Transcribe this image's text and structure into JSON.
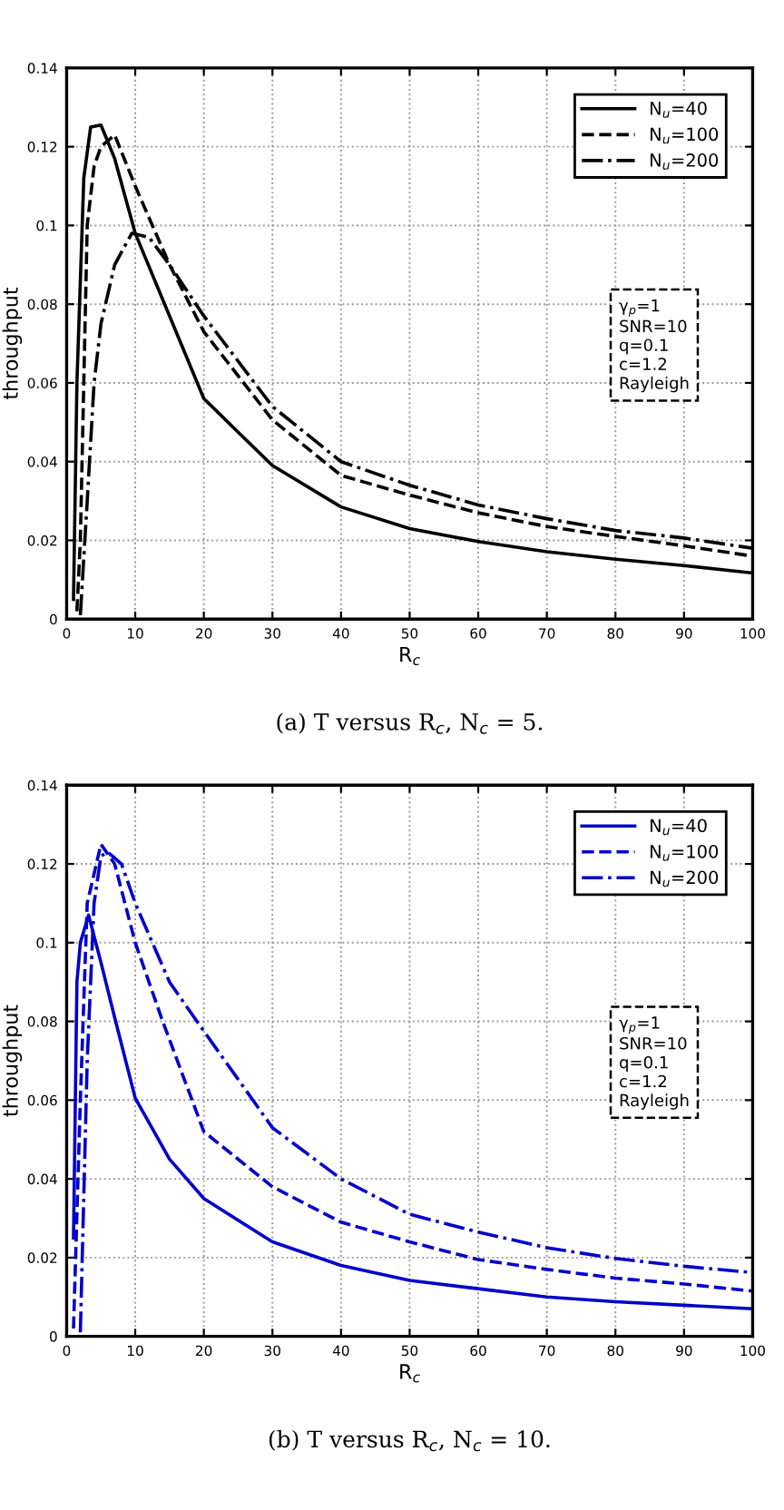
{
  "chart_data": [
    {
      "type": "line",
      "xlabel": "R$_{c}$",
      "ylabel": "throughput",
      "xlim": [
        0,
        100
      ],
      "ylim": [
        0,
        0.14
      ],
      "xticks": [
        0,
        10,
        20,
        30,
        40,
        50,
        60,
        70,
        80,
        90,
        100
      ],
      "yticks": [
        0,
        0.02,
        0.04,
        0.06,
        0.08,
        0.1,
        0.12,
        0.14
      ],
      "grid": true,
      "legend": "top right",
      "annotations": [
        "γ$_{p}$=1\nSNR=10\nq=0.1\nc=1.2\nRayleigh",
        "(a) T versus R$_{c}$, N$_{c}$ = 5."
      ],
      "series": [
        {
          "name": "N$_{u}$=40",
          "color": "#000000",
          "line_style": "solid",
          "x": [
            1,
            1.5,
            2.5,
            3.5,
            5,
            7,
            10,
            15,
            20,
            30,
            40,
            50,
            60,
            70,
            80,
            90,
            100
          ],
          "values": [
            0.005,
            0.06,
            0.112,
            0.125,
            0.1255,
            0.117,
            0.098,
            0.077,
            0.056,
            0.039,
            0.0285,
            0.023,
            0.0197,
            0.0171,
            0.0152,
            0.0136,
            0.0117
          ]
        },
        {
          "name": "N$_{u}$=100",
          "color": "#000000",
          "line_style": "dashed",
          "x": [
            1.5,
            2,
            2.5,
            3,
            4,
            5,
            7,
            10,
            15,
            20,
            30,
            40,
            50,
            60,
            70,
            80,
            90,
            100
          ],
          "values": [
            0.002,
            0.02,
            0.06,
            0.1,
            0.115,
            0.12,
            0.123,
            0.11,
            0.09,
            0.073,
            0.0506,
            0.0365,
            0.0315,
            0.027,
            0.0235,
            0.021,
            0.0186,
            0.016
          ]
        },
        {
          "name": "N$_{u}$=200",
          "color": "#000000",
          "line_style": "dashdot",
          "x": [
            2,
            3,
            4,
            5,
            7,
            9.5,
            12,
            15,
            20,
            30,
            40,
            50,
            60,
            70,
            80,
            90,
            100
          ],
          "values": [
            0.001,
            0.03,
            0.06,
            0.075,
            0.09,
            0.098,
            0.097,
            0.09,
            0.077,
            0.054,
            0.04,
            0.034,
            0.029,
            0.0255,
            0.0225,
            0.0206,
            0.018
          ]
        }
      ]
    },
    {
      "type": "line",
      "xlabel": "R$_{c}$",
      "ylabel": "throughput",
      "xlim": [
        0,
        100
      ],
      "ylim": [
        0,
        0.14
      ],
      "xticks": [
        0,
        10,
        20,
        30,
        40,
        50,
        60,
        70,
        80,
        90,
        100
      ],
      "yticks": [
        0,
        0.02,
        0.04,
        0.06,
        0.08,
        0.1,
        0.12,
        0.14
      ],
      "grid": true,
      "legend": "top right",
      "annotations": [
        "γ$_{p}$=1\nSNR=10\nq=0.1\nc=1.2\nRayleigh",
        "(b) T versus R$_{c}$, N$_{c}$ = 10."
      ],
      "series": [
        {
          "name": "N$_{u}$=40",
          "color": "#0000cc",
          "line_style": "solid",
          "x": [
            1,
            1.5,
            2,
            3.2,
            5,
            7,
            10,
            15,
            20,
            30,
            40,
            50,
            60,
            70,
            80,
            90,
            100
          ],
          "values": [
            0.025,
            0.09,
            0.1,
            0.107,
            0.095,
            0.081,
            0.0605,
            0.045,
            0.035,
            0.024,
            0.018,
            0.0142,
            0.0121,
            0.01,
            0.0088,
            0.0079,
            0.007
          ]
        },
        {
          "name": "N$_{u}$=100",
          "color": "#0000cc",
          "line_style": "dashed",
          "x": [
            1,
            2,
            3,
            5,
            7,
            10,
            14,
            20,
            30,
            40,
            50,
            60,
            70,
            80,
            90,
            100
          ],
          "values": [
            0.002,
            0.06,
            0.11,
            0.125,
            0.12,
            0.1,
            0.08,
            0.052,
            0.038,
            0.029,
            0.024,
            0.0195,
            0.017,
            0.0148,
            0.0133,
            0.0115
          ]
        },
        {
          "name": "N$_{u}$=200",
          "color": "#0000cc",
          "line_style": "dashdot",
          "x": [
            2,
            3,
            4,
            5,
            6,
            8,
            10,
            15,
            19,
            30,
            40,
            50,
            60,
            70,
            80,
            90,
            100
          ],
          "values": [
            0.001,
            0.07,
            0.11,
            0.122,
            0.123,
            0.12,
            0.11,
            0.09,
            0.08,
            0.053,
            0.04,
            0.031,
            0.0265,
            0.0225,
            0.0198,
            0.0178,
            0.0162
          ]
        }
      ]
    }
  ]
}
